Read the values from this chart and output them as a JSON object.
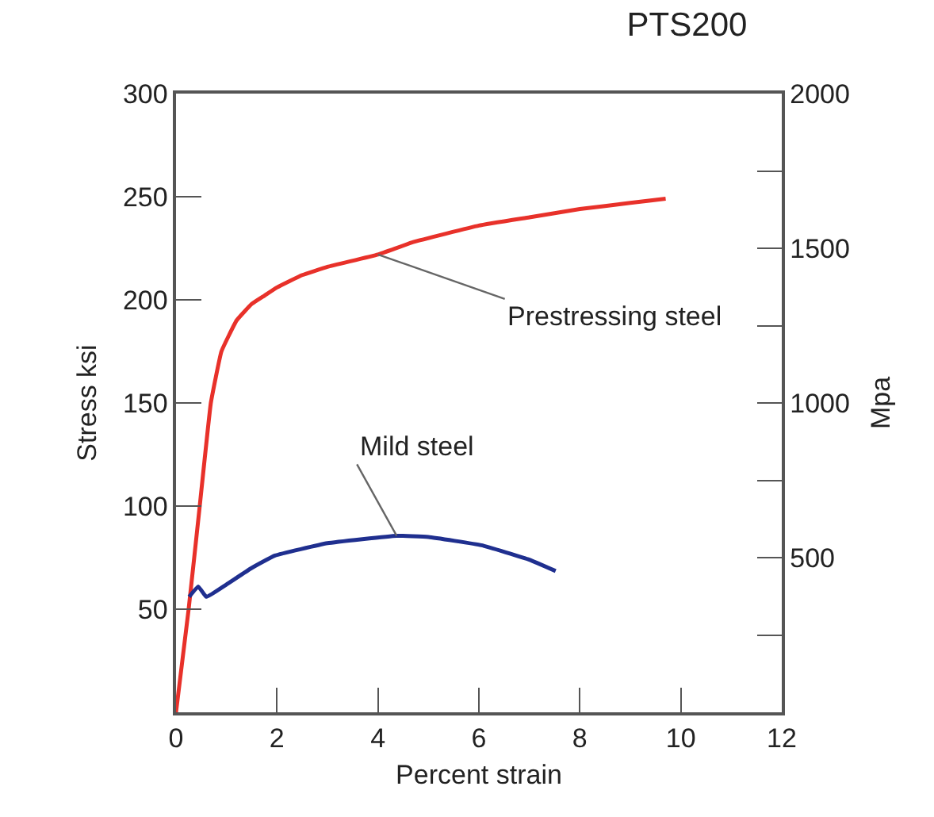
{
  "chart_data": {
    "type": "line",
    "title": "PTS200",
    "xlabel": "Percent strain",
    "ylabel": "Stress ksi",
    "y2label": "Mpa",
    "xlim": [
      0,
      12
    ],
    "xticks": [
      0,
      2,
      4,
      6,
      8,
      10,
      12
    ],
    "ylim": [
      0,
      300
    ],
    "yticks": [
      50,
      100,
      150,
      200,
      250,
      300
    ],
    "y2lim": [
      0,
      2000
    ],
    "y2ticks": [
      {
        "value": 250,
        "label": null
      },
      500,
      {
        "value": 750,
        "label": null
      },
      1000,
      {
        "value": 1250,
        "label": null
      },
      1500,
      {
        "value": 1750,
        "label": null
      },
      2000
    ],
    "grid": false,
    "legend": false,
    "marker": "none",
    "line_style": "solid",
    "series": [
      {
        "name": "Prestressing steel",
        "color": "#e8312a",
        "x": [
          0,
          0.25,
          0.47,
          0.69,
          0.9,
          1.2,
          1.5,
          1.75,
          2,
          2.5,
          3,
          4,
          4.7,
          6,
          7,
          8,
          9,
          9.7
        ],
        "values": [
          0,
          50,
          100,
          150,
          175,
          190,
          198,
          202,
          206,
          212,
          216,
          222,
          228,
          236,
          240,
          244,
          247,
          249
        ]
      },
      {
        "name": "Mild steel",
        "color": "#1f2f8f",
        "x": [
          0.26,
          0.44,
          0.6,
          1,
          1.5,
          1.96,
          3,
          4.37,
          5,
          6.05,
          7,
          7.52
        ],
        "values": [
          56,
          61,
          56,
          62,
          70,
          76,
          82,
          85.6,
          85,
          81,
          74,
          68.5
        ]
      }
    ]
  }
}
